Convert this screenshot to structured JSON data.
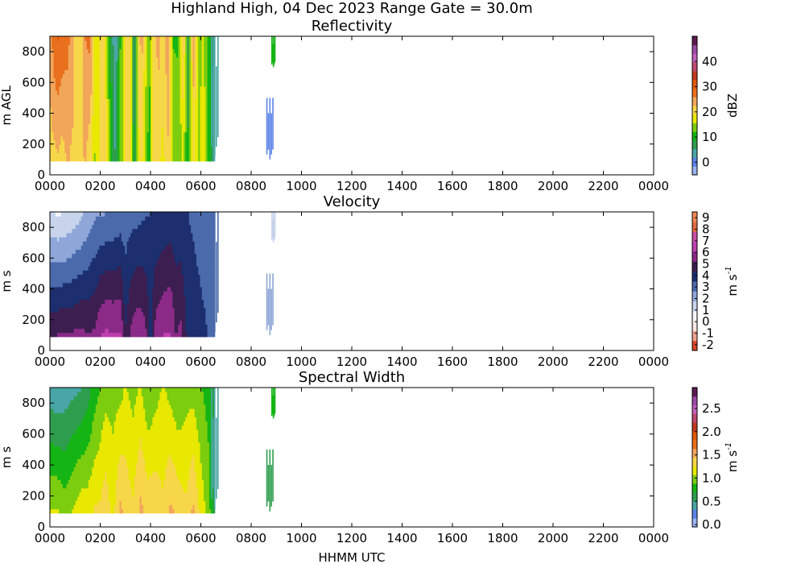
{
  "figure_title": "Highland High, 04 Dec 2023 Range Gate = 30.0m",
  "xlabel": "HHMM UTC",
  "chart_data": [
    {
      "type": "heatmap",
      "title": "Reflectivity",
      "ylabel": "m AGL",
      "colorbar_label": "dBZ",
      "xlim": [
        0,
        24
      ],
      "ylim": [
        0,
        900
      ],
      "x_ticks": [
        "0000",
        "0200",
        "0400",
        "0600",
        "0800",
        "1000",
        "1200",
        "1400",
        "1600",
        "1800",
        "2000",
        "2200",
        "0000"
      ],
      "y_ticks": [
        0,
        200,
        400,
        600,
        800
      ],
      "colorbar_range": [
        -5,
        50
      ],
      "colorbar_ticks": [
        "0",
        "10",
        "20",
        "30",
        "40"
      ],
      "colorbar_tick_values": [
        0,
        10,
        20,
        30,
        40
      ],
      "colormap": [
        "#9bb4f2",
        "#5b83e8",
        "#4aa6a6",
        "#2e9e4e",
        "#14b414",
        "#7ccd0f",
        "#e8e800",
        "#f7d74a",
        "#f2a65a",
        "#e8701e",
        "#e05a0a",
        "#c03a20",
        "#c04870",
        "#c060b8",
        "#9a4aa6",
        "#5a1a50"
      ],
      "data_extent": {
        "start_hour": 0,
        "end_hour": 6.55,
        "bottom_m": 90,
        "top_m": 900
      },
      "profile_times": [
        0,
        0.15,
        0.3,
        0.5,
        0.7,
        0.85,
        1.0,
        1.2,
        1.4,
        1.6,
        1.8,
        1.9,
        2.0,
        2.2,
        2.4,
        2.6,
        2.8,
        3.0,
        3.2,
        3.35,
        3.5,
        3.65,
        3.8,
        3.95,
        4.1,
        4.3,
        4.5,
        4.7,
        4.9,
        5.1,
        5.3,
        5.5,
        5.7,
        5.9,
        6.1,
        6.3,
        6.55
      ],
      "profile_low": [
        22,
        21,
        22,
        21,
        23,
        22,
        22,
        21,
        23,
        20,
        15,
        17,
        22,
        21,
        12,
        5,
        13,
        20,
        22,
        5,
        18,
        20,
        14,
        10,
        22,
        20,
        18,
        22,
        14,
        13,
        16,
        9,
        20,
        15,
        18,
        12,
        2
      ],
      "profile_high": [
        22,
        28,
        30,
        28,
        27,
        25,
        22,
        20,
        26,
        27,
        18,
        16,
        21,
        19,
        9,
        2,
        12,
        21,
        20,
        3,
        20,
        24,
        18,
        12,
        19,
        24,
        21,
        25,
        12,
        12,
        24,
        7,
        25,
        14,
        16,
        12,
        4
      ],
      "patches": [
        [
          6.4,
          6.72,
          120,
          900,
          3
        ],
        [
          8.6,
          8.9,
          100,
          500,
          1
        ],
        [
          8.8,
          8.95,
          700,
          900,
          12
        ]
      ]
    },
    {
      "type": "heatmap",
      "title": "Velocity",
      "ylabel": "m s",
      "ylabel_superscript": "-1",
      "xlim": [
        0,
        24
      ],
      "ylim": [
        0,
        900
      ],
      "x_ticks": [
        "0000",
        "0200",
        "0400",
        "0600",
        "0800",
        "1000",
        "1200",
        "1400",
        "1600",
        "1800",
        "2000",
        "2200",
        "0000"
      ],
      "y_ticks": [
        0,
        200,
        400,
        600,
        800
      ],
      "colorbar_range": [
        -2.5,
        9.5
      ],
      "colorbar_ticks": [
        "-2",
        "-1",
        "0",
        "1",
        "2",
        "3",
        "4",
        "5",
        "6",
        "7",
        "8",
        "9"
      ],
      "colorbar_tick_values": [
        -2,
        -1,
        0,
        1,
        2,
        3,
        4,
        5,
        6,
        7,
        8,
        9
      ],
      "colormap": [
        "#d8462a",
        "#f0a090",
        "#fbe6e0",
        "#f4f4fa",
        "#c8d4ec",
        "#8ea6d8",
        "#4a6aac",
        "#1c2f6e",
        "#3c1e50",
        "#8c2a88",
        "#c040b0",
        "#c850a8",
        "#e06a40",
        "#f08a50"
      ],
      "data_extent": {
        "start_hour": 0,
        "end_hour": 6.55,
        "bottom_m": 90,
        "top_m": 900
      },
      "profile_times": [
        0,
        0.3,
        0.6,
        0.9,
        1.2,
        1.5,
        1.8,
        2.0,
        2.2,
        2.5,
        2.8,
        3.0,
        3.2,
        3.5,
        3.8,
        4.0,
        4.2,
        4.5,
        4.8,
        5.0,
        5.2,
        5.5,
        5.8,
        6.1,
        6.55
      ],
      "profile_low": [
        5.2,
        5.3,
        5.4,
        5.4,
        5.5,
        5.3,
        5.4,
        6.1,
        6.3,
        6.2,
        6.2,
        4.4,
        5.4,
        5.9,
        5.5,
        4.0,
        5.6,
        6.1,
        6.2,
        5.2,
        5.5,
        4.0,
        3.9,
        3.7,
        3.2
      ],
      "profile_high": [
        1.0,
        0.8,
        0.9,
        1.2,
        1.5,
        2.0,
        2.5,
        2.5,
        2.6,
        2.7,
        2.9,
        3.0,
        3.1,
        3.2,
        3.4,
        3.5,
        3.5,
        3.6,
        3.8,
        3.7,
        3.6,
        3.5,
        3.3,
        3.0,
        3.0
      ],
      "patches": [
        [
          6.4,
          6.72,
          120,
          900,
          3.0
        ],
        [
          8.6,
          8.9,
          100,
          500,
          2.5
        ],
        [
          8.8,
          8.95,
          700,
          900,
          1.5
        ]
      ]
    },
    {
      "type": "heatmap",
      "title": "Spectral Width",
      "ylabel": "m s",
      "ylabel_superscript": "-1",
      "xlim": [
        0,
        24
      ],
      "ylim": [
        0,
        900
      ],
      "x_ticks": [
        "0000",
        "0200",
        "0400",
        "0600",
        "0800",
        "1000",
        "1200",
        "1400",
        "1600",
        "1800",
        "2000",
        "2200",
        "0000"
      ],
      "y_ticks": [
        0,
        200,
        400,
        600,
        800
      ],
      "colorbar_range": [
        -0.05,
        2.95
      ],
      "colorbar_ticks": [
        "0.0",
        "0.5",
        "1.0",
        "1.5",
        "2.0",
        "2.5"
      ],
      "colorbar_tick_values": [
        0.0,
        0.5,
        1.0,
        1.5,
        2.0,
        2.5
      ],
      "colormap": [
        "#9bb4f2",
        "#5b83e8",
        "#4aa6a6",
        "#2e9e4e",
        "#14b414",
        "#7ccd0f",
        "#e8e800",
        "#f7d74a",
        "#f2a65a",
        "#e8701e",
        "#e05a0a",
        "#c03a20",
        "#c04870",
        "#c060b8",
        "#9a4aa6",
        "#5a1a50"
      ],
      "data_extent": {
        "start_hour": 0,
        "end_hour": 6.55,
        "bottom_m": 90,
        "top_m": 900
      },
      "profile_times": [
        0,
        0.3,
        0.6,
        0.9,
        1.2,
        1.5,
        1.8,
        2.0,
        2.2,
        2.5,
        2.8,
        3.0,
        3.3,
        3.6,
        3.9,
        4.2,
        4.5,
        4.8,
        5.1,
        5.4,
        5.7,
        6.0,
        6.3,
        6.55
      ],
      "profile_low": [
        1.1,
        1.1,
        1.0,
        1.1,
        1.2,
        1.2,
        1.3,
        1.3,
        1.4,
        1.2,
        1.5,
        1.4,
        1.3,
        1.5,
        1.4,
        1.4,
        1.3,
        1.5,
        1.4,
        1.3,
        1.5,
        1.2,
        1.0,
        0.6
      ],
      "profile_high": [
        0.4,
        0.35,
        0.4,
        0.45,
        0.5,
        0.6,
        0.8,
        0.9,
        1.0,
        1.0,
        1.0,
        1.1,
        1.0,
        1.1,
        0.9,
        1.0,
        1.1,
        1.0,
        0.9,
        1.0,
        1.0,
        0.9,
        0.8,
        0.6
      ],
      "patches": [
        [
          6.4,
          6.72,
          120,
          900,
          0.4
        ],
        [
          8.6,
          8.9,
          100,
          500,
          0.6
        ],
        [
          8.8,
          8.95,
          700,
          900,
          0.8
        ]
      ]
    }
  ]
}
